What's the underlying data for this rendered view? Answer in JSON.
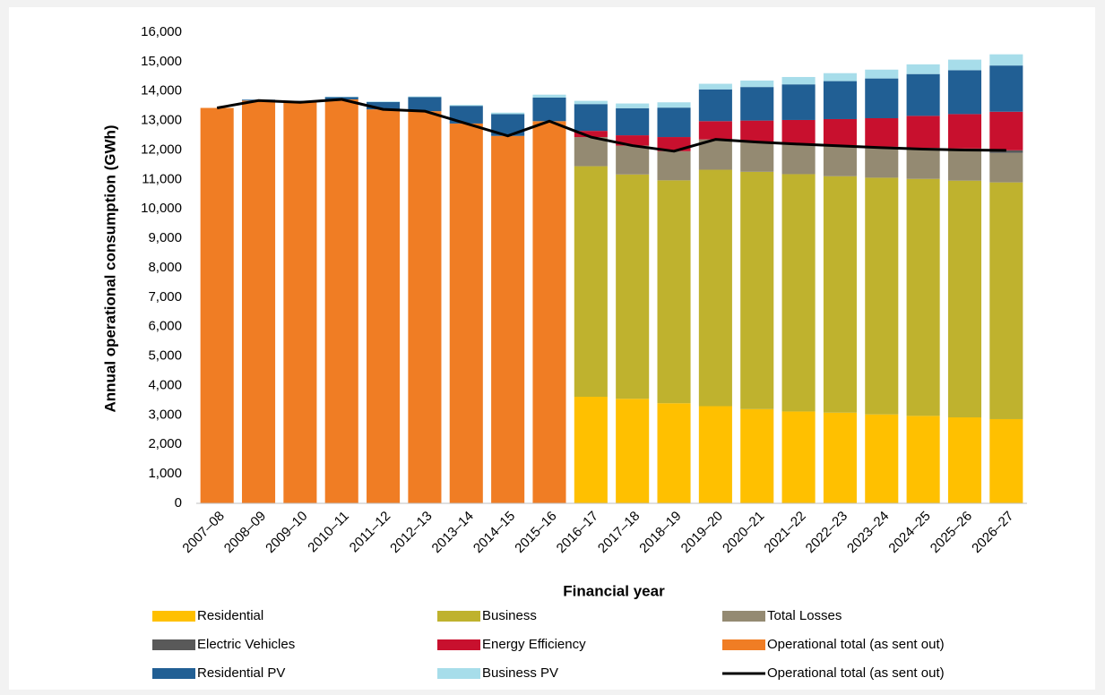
{
  "chart_data": {
    "type": "bar",
    "stacked": true,
    "x_label": "Financial year",
    "y_label": "Annual operational consumption (GWh)",
    "categories": [
      "2007–08",
      "2008–09",
      "2009–10",
      "2010–11",
      "2011–12",
      "2012–13",
      "2013–14",
      "2014–15",
      "2015–16",
      "2016–17",
      "2017–18",
      "2018–19",
      "2019–20",
      "2020–21",
      "2021–22",
      "2022–23",
      "2023–24",
      "2024–25",
      "2025–26",
      "2026–27"
    ],
    "ylim": [
      0,
      16000
    ],
    "yticks": [
      0,
      {
        "value": 1000,
        "label": "1,000"
      },
      {
        "value": 2000,
        "label": "2,000"
      },
      {
        "value": 3000,
        "label": "3,000"
      },
      {
        "value": 4000,
        "label": "4,000"
      },
      {
        "value": 5000,
        "label": "5,000"
      },
      {
        "value": 6000,
        "label": "6,000"
      },
      {
        "value": 7000,
        "label": "7,000"
      },
      {
        "value": 8000,
        "label": "8,000"
      },
      {
        "value": 9000,
        "label": "9,000"
      },
      {
        "value": 10000,
        "label": "10,000"
      },
      {
        "value": 11000,
        "label": "11,000"
      },
      {
        "value": 12000,
        "label": "12,000"
      },
      {
        "value": 13000,
        "label": "13,000"
      },
      {
        "value": 14000,
        "label": "14,000"
      },
      {
        "value": 15000,
        "label": "15,000"
      },
      {
        "value": 16000,
        "label": "16,000"
      }
    ],
    "grid": false,
    "series": [
      {
        "name": "Residential",
        "type": "bar",
        "color": "#FFC000",
        "values": [
          null,
          null,
          null,
          null,
          null,
          null,
          null,
          null,
          null,
          3620,
          3550,
          3400,
          3300,
          3200,
          3120,
          3080,
          3020,
          2970,
          2920,
          2860
        ]
      },
      {
        "name": "Business",
        "type": "bar",
        "color": "#BFB22E",
        "values": [
          null,
          null,
          null,
          null,
          null,
          null,
          null,
          null,
          null,
          7830,
          7620,
          7570,
          8030,
          8060,
          8060,
          8030,
          8040,
          8050,
          8040,
          8040
        ]
      },
      {
        "name": "Total Losses",
        "type": "bar",
        "color": "#948A72",
        "values": [
          null,
          null,
          null,
          null,
          null,
          null,
          null,
          null,
          null,
          990,
          980,
          990,
          1030,
          1010,
          1020,
          1030,
          1020,
          1010,
          1040,
          1000
        ]
      },
      {
        "name": "Electric Vehicles",
        "type": "bar",
        "color": "#595959",
        "values": [
          null,
          null,
          null,
          null,
          null,
          null,
          null,
          null,
          null,
          0,
          0,
          0,
          0,
          0,
          10,
          20,
          30,
          40,
          50,
          90
        ]
      },
      {
        "name": "Energy Efficiency",
        "type": "bar",
        "color": "#C8102E",
        "values": [
          null,
          null,
          null,
          null,
          null,
          null,
          null,
          null,
          null,
          210,
          350,
          480,
          620,
          730,
          810,
          890,
          970,
          1090,
          1170,
          1310
        ]
      },
      {
        "name": "Operational total (as sent out)",
        "type": "bar",
        "color": "#F07D24",
        "values": [
          13430,
          13680,
          13620,
          13720,
          13380,
          13320,
          12900,
          12480,
          12980,
          null,
          null,
          null,
          null,
          null,
          null,
          null,
          null,
          null,
          null,
          null
        ]
      },
      {
        "name": "Residential PV",
        "type": "bar",
        "color": "#215F94",
        "values": [
          0,
          30,
          50,
          80,
          250,
          480,
          600,
          740,
          800,
          910,
          920,
          1000,
          1080,
          1140,
          1210,
          1290,
          1350,
          1420,
          1490,
          1570
        ]
      },
      {
        "name": "Business PV",
        "type": "bar",
        "color": "#A7DDEA",
        "values": [
          0,
          0,
          0,
          10,
          20,
          20,
          30,
          50,
          100,
          110,
          160,
          180,
          190,
          220,
          250,
          270,
          300,
          330,
          360,
          380
        ]
      },
      {
        "name": "Operational total (as sent out)",
        "type": "line",
        "color": "#000000",
        "values": [
          13430,
          13680,
          13620,
          13720,
          13380,
          13320,
          12900,
          12480,
          12980,
          12440,
          12150,
          11960,
          12360,
          12270,
          12200,
          12140,
          12080,
          12030,
          12000,
          11990
        ]
      }
    ]
  }
}
